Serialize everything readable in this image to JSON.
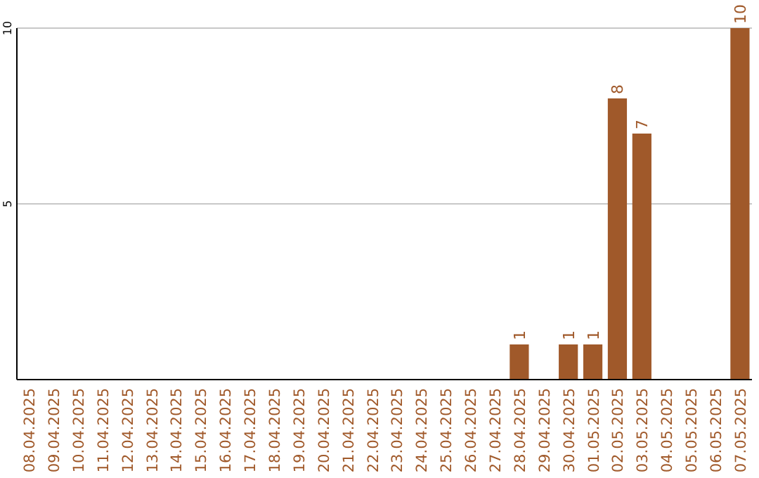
{
  "chart_data": {
    "type": "bar",
    "categories": [
      "08.04.2025",
      "09.04.2025",
      "10.04.2025",
      "11.04.2025",
      "12.04.2025",
      "13.04.2025",
      "14.04.2025",
      "15.04.2025",
      "16.04.2025",
      "17.04.2025",
      "18.04.2025",
      "19.04.2025",
      "20.04.2025",
      "21.04.2025",
      "22.04.2025",
      "23.04.2025",
      "24.04.2025",
      "25.04.2025",
      "26.04.2025",
      "27.04.2025",
      "28.04.2025",
      "29.04.2025",
      "30.04.2025",
      "01.05.2025",
      "02.05.2025",
      "03.05.2025",
      "04.05.2025",
      "05.05.2025",
      "06.05.2025",
      "07.05.2025"
    ],
    "values": [
      0,
      0,
      0,
      0,
      0,
      0,
      0,
      0,
      0,
      0,
      0,
      0,
      0,
      0,
      0,
      0,
      0,
      0,
      0,
      0,
      1,
      0,
      1,
      1,
      8,
      7,
      0,
      0,
      0,
      10
    ],
    "value_labels": [
      null,
      null,
      null,
      null,
      null,
      null,
      null,
      null,
      null,
      null,
      null,
      null,
      null,
      null,
      null,
      null,
      null,
      null,
      null,
      null,
      "1",
      null,
      "1",
      "1",
      "8",
      "7",
      null,
      null,
      null,
      "10"
    ],
    "color": "#a0592a",
    "ylim": [
      0,
      10
    ],
    "yticks": [
      5,
      10
    ],
    "grid": "y"
  }
}
